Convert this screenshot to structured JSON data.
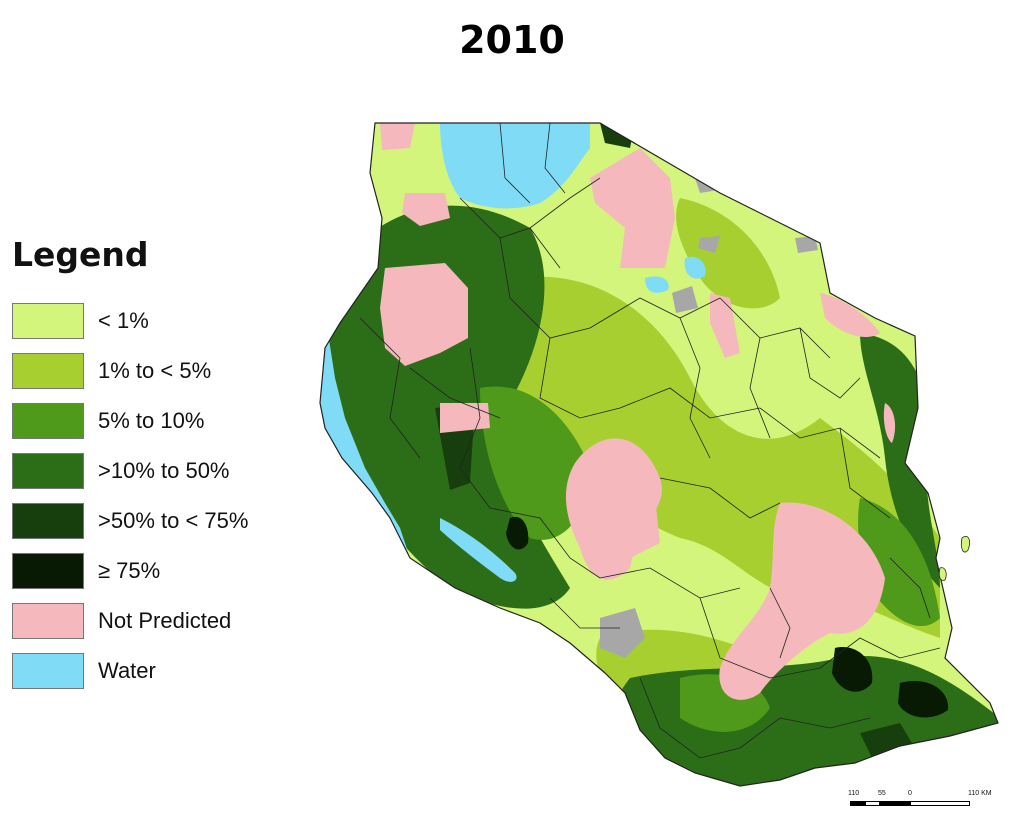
{
  "title": "2010",
  "legend": {
    "title": "Legend",
    "items": [
      {
        "label": "< 1%",
        "color": "#d4f57c"
      },
      {
        "label": "1% to < 5%",
        "color": "#a6cf2f"
      },
      {
        "label": "5% to 10%",
        "color": "#4f9a1a"
      },
      {
        "label": ">10% to 50%",
        "color": "#2c6e17"
      },
      {
        "label": ">50% to < 75%",
        "color": "#173f0e"
      },
      {
        "label": "≥ 75%",
        "color": "#081a04"
      },
      {
        "label": "Not Predicted",
        "color": "#f5b8bd"
      },
      {
        "label": "Water",
        "color": "#80dcf6"
      }
    ]
  },
  "colors": {
    "no_data": "#a7a7a7",
    "boundary": "#222222"
  },
  "scalebar": {
    "labels": [
      "110",
      "55",
      "0",
      "110 KM"
    ]
  }
}
